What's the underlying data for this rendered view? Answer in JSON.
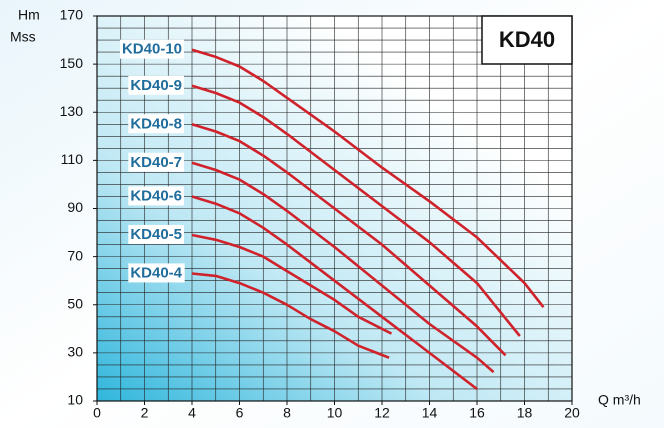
{
  "chart_data": {
    "type": "line",
    "title": "KD40",
    "y_label": [
      "Hm",
      "Mss"
    ],
    "x_label": "Q m³/h",
    "xlim": [
      0,
      20
    ],
    "xticks": [
      0,
      2,
      4,
      6,
      8,
      10,
      12,
      14,
      16,
      18,
      20
    ],
    "ylim": [
      10,
      170
    ],
    "yticks": [
      10,
      30,
      50,
      70,
      90,
      110,
      130,
      150,
      170
    ],
    "grid": true,
    "series": [
      {
        "name": "KD40-10",
        "color": "#d0222b",
        "x": [
          4,
          5,
          6,
          7,
          8,
          10,
          12,
          14,
          16,
          18,
          18.8
        ],
        "values": [
          156,
          153,
          149,
          143,
          136,
          122,
          107,
          93,
          78,
          59,
          49
        ]
      },
      {
        "name": "KD40-9",
        "color": "#d0222b",
        "x": [
          4,
          5,
          6,
          7,
          8,
          10,
          12,
          14,
          16,
          17.8
        ],
        "values": [
          141,
          138,
          134,
          128,
          121,
          106,
          91,
          76,
          59,
          37
        ]
      },
      {
        "name": "KD40-8",
        "color": "#d0222b",
        "x": [
          4,
          5,
          6,
          7,
          8,
          10,
          12,
          14,
          16,
          17.2
        ],
        "values": [
          125,
          122,
          118,
          112,
          105,
          90,
          75,
          58,
          41,
          29
        ]
      },
      {
        "name": "KD40-7",
        "color": "#d0222b",
        "x": [
          4,
          5,
          6,
          7,
          8,
          10,
          12,
          14,
          16,
          16.7
        ],
        "values": [
          109,
          106,
          102,
          96,
          89,
          74,
          58,
          42,
          28,
          22
        ]
      },
      {
        "name": "KD40-6",
        "color": "#d0222b",
        "x": [
          4,
          5,
          6,
          7,
          8,
          10,
          12,
          14,
          16
        ],
        "values": [
          95,
          92,
          88,
          82,
          75,
          60,
          45,
          30,
          15
        ]
      },
      {
        "name": "KD40-5",
        "color": "#d0222b",
        "x": [
          4,
          5,
          6,
          7,
          8,
          9,
          10,
          11,
          12.4
        ],
        "values": [
          79,
          77,
          74,
          70,
          64,
          58,
          52,
          45,
          38
        ]
      },
      {
        "name": "KD40-4",
        "color": "#d0222b",
        "x": [
          4,
          5,
          6,
          7,
          8,
          9,
          10,
          11,
          12.3
        ],
        "values": [
          63,
          62,
          59,
          55,
          50,
          44,
          39,
          33,
          28
        ]
      }
    ]
  }
}
